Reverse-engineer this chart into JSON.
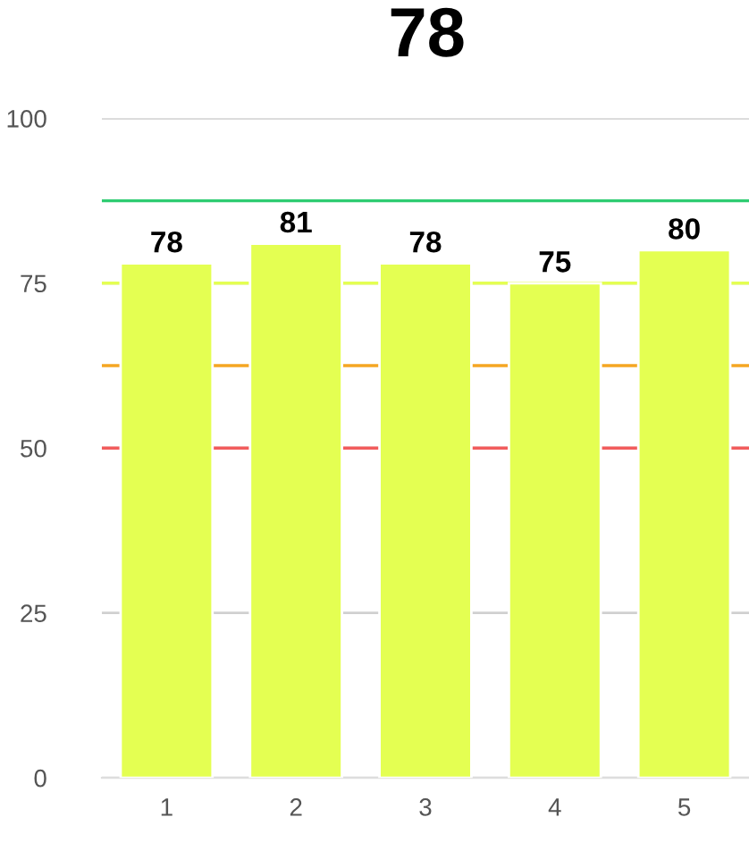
{
  "chart_data": {
    "type": "bar",
    "title": "78",
    "categories": [
      "1",
      "2",
      "3",
      "4",
      "5"
    ],
    "values": [
      78,
      81,
      78,
      75,
      80
    ],
    "color": "#e4ff52",
    "ylim": [
      0,
      100
    ],
    "yticks": [
      0,
      25,
      50,
      75,
      100
    ],
    "grid": "y",
    "data_labels": true,
    "ref_lines": [
      {
        "axis": "y",
        "value": 87.5,
        "color": "#2ecc71"
      },
      {
        "axis": "y",
        "value": 75,
        "color": "#e4ff52"
      },
      {
        "axis": "y",
        "value": 62.5,
        "color": "#f5a623"
      },
      {
        "axis": "y",
        "value": 50,
        "color": "#f25c5c"
      }
    ]
  }
}
